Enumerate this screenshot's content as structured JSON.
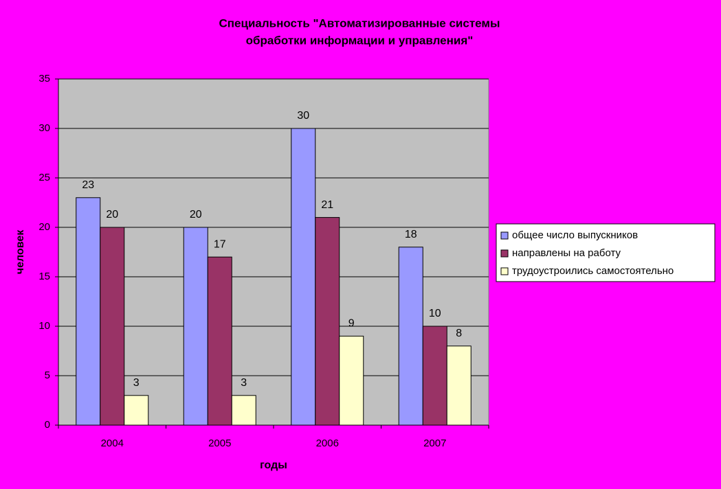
{
  "chart_data": {
    "type": "bar",
    "title": [
      "Специальность \"Автоматизированные системы",
      "обработки информации и управления\""
    ],
    "x_label": "годы",
    "y_label": "человек",
    "categories": [
      "2004",
      "2005",
      "2006",
      "2007"
    ],
    "series": [
      {
        "name": "общее число выпускников",
        "color": "#9999ff",
        "values": [
          23,
          20,
          30,
          18
        ]
      },
      {
        "name": "направлены на работу",
        "color": "#993366",
        "values": [
          20,
          17,
          21,
          10
        ]
      },
      {
        "name": "трудоустроились самостоятельно",
        "color": "#ffffcc",
        "values": [
          3,
          3,
          9,
          8
        ]
      }
    ],
    "ylim": [
      0,
      35
    ],
    "yticks": [
      0,
      5,
      10,
      15,
      20,
      25,
      30,
      35
    ],
    "grid": true,
    "legend": "right"
  }
}
